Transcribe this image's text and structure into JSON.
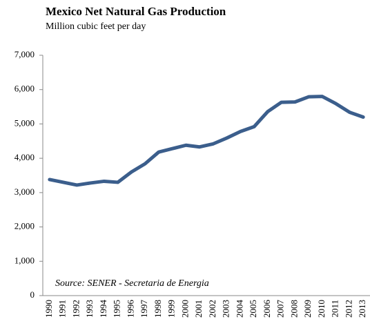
{
  "chart_data": {
    "type": "line",
    "title": "Mexico Net Natural Gas Production",
    "subtitle": "Million cubic feet per day",
    "annotation": "Source: SENER - Secretaria de Energia",
    "categories": [
      "1990",
      "1991",
      "1992",
      "1993",
      "1994",
      "1995",
      "1996",
      "1997",
      "1998",
      "1999",
      "2000",
      "2001",
      "2002",
      "2003",
      "2004",
      "2005",
      "2006",
      "2007",
      "2008",
      "2009",
      "2010",
      "2011",
      "2012",
      "2013"
    ],
    "series": [
      {
        "name": "Net natural gas production",
        "color": "#3b5e8c",
        "values": [
          3380,
          3300,
          3220,
          3280,
          3330,
          3300,
          3600,
          3840,
          4180,
          4280,
          4380,
          4330,
          4420,
          4590,
          4780,
          4920,
          5360,
          5630,
          5640,
          5790,
          5800,
          5590,
          5340,
          5200
        ]
      }
    ],
    "ylim": [
      0,
      7000
    ],
    "yticks": [
      0,
      {
        "value": 1000,
        "label": "1,000"
      },
      {
        "value": 2000,
        "label": "2,000"
      },
      {
        "value": 3000,
        "label": "3,000"
      },
      {
        "value": 4000,
        "label": "4,000"
      },
      {
        "value": 5000,
        "label": "5,000"
      },
      {
        "value": 6000,
        "label": "6,000"
      },
      {
        "value": 7000,
        "label": "7,000"
      }
    ],
    "grid": false
  }
}
